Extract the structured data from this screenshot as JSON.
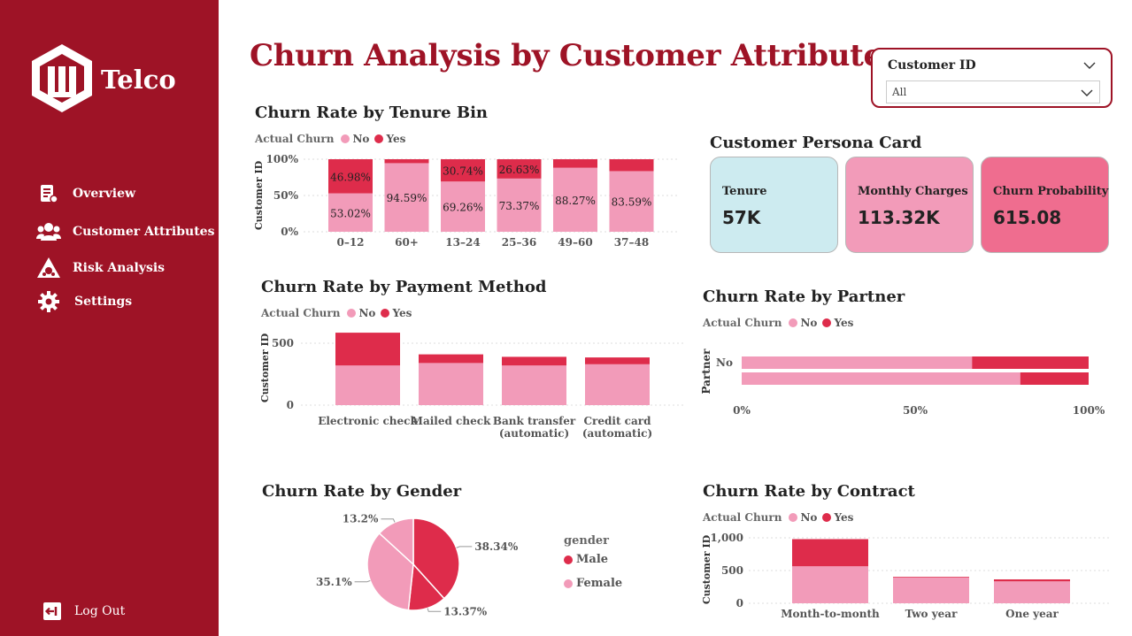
{
  "brand": {
    "name": "Telco"
  },
  "nav": {
    "items": [
      {
        "label": "Overview",
        "icon": "report-icon"
      },
      {
        "label": "Customer Attributes",
        "icon": "users-icon"
      },
      {
        "label": "Risk Analysis",
        "icon": "warning-icon"
      },
      {
        "label": "Settings",
        "icon": "gear-icon"
      }
    ],
    "logout": {
      "label": "Log Out",
      "icon": "logout-icon"
    }
  },
  "header": {
    "title": "Churn Analysis by Customer Attributes"
  },
  "slicer": {
    "title": "Customer ID",
    "value": "All"
  },
  "colors": {
    "no": "#f29bb9",
    "yes": "#de2c4b",
    "brand": "#9e1326",
    "card_tenure": "#cdebf0",
    "card_monthly": "#f29bb9",
    "card_churn": "#ef6d8f"
  },
  "legend": {
    "title": "Actual Churn",
    "no": "No",
    "yes": "Yes"
  },
  "persona": {
    "title": "Customer Persona Card",
    "cards": [
      {
        "label": "Tenure",
        "value": "57K"
      },
      {
        "label": "Monthly Charges",
        "value": "113.32K"
      },
      {
        "label": "Churn Probability",
        "value": "615.08"
      }
    ]
  },
  "chart_data": [
    {
      "id": "tenure",
      "type": "bar",
      "stacked": "100%",
      "title": "Churn Rate by Tenure Bin",
      "ylabel": "Customer ID",
      "yticks": [
        "100%",
        "50%",
        "0%"
      ],
      "categories": [
        "0–12",
        "60+",
        "13–24",
        "25–36",
        "49–60",
        "37–48"
      ],
      "series": [
        {
          "name": "No",
          "values": [
            53.02,
            94.59,
            69.26,
            73.37,
            88.27,
            83.59
          ],
          "labels": [
            "53.02%",
            "94.59%",
            "69.26%",
            "73.37%",
            "88.27%",
            "83.59%"
          ]
        },
        {
          "name": "Yes",
          "values": [
            46.98,
            5.41,
            30.74,
            26.63,
            11.73,
            16.41
          ],
          "labels": [
            "46.98%",
            "",
            "30.74%",
            "26.63%",
            "",
            ""
          ]
        }
      ]
    },
    {
      "id": "payment",
      "type": "bar",
      "stacked": "count",
      "title": "Churn Rate by Payment Method",
      "ylabel": "Customer ID",
      "ylim": [
        0,
        600
      ],
      "yticks": [
        "500",
        "0"
      ],
      "categories": [
        "Electronic check",
        "Mailed check",
        "Bank transfer (automatic)",
        "Credit card (automatic)"
      ],
      "category_lines": [
        [
          "Electronic check"
        ],
        [
          "Mailed check"
        ],
        [
          "Bank transfer",
          "(automatic)"
        ],
        [
          "Credit card",
          "(automatic)"
        ]
      ],
      "series": [
        {
          "name": "No",
          "values": [
            320,
            340,
            320,
            330
          ]
        },
        {
          "name": "Yes",
          "values": [
            265,
            70,
            70,
            55
          ]
        }
      ]
    },
    {
      "id": "partner",
      "type": "bar",
      "orientation": "horizontal",
      "stacked": "100%",
      "title": "Churn Rate by Partner",
      "ylabel": "Partner",
      "categories": [
        "No",
        ""
      ],
      "xticks": [
        "0%",
        "50%",
        "100%"
      ],
      "series": [
        {
          "name": "No",
          "values": [
            66.4,
            80.3
          ]
        },
        {
          "name": "Yes",
          "values": [
            33.6,
            19.7
          ]
        }
      ]
    },
    {
      "id": "gender",
      "type": "pie",
      "title": "Churn Rate by Gender",
      "legend_title": "gender",
      "slices": [
        {
          "name": "Male",
          "value": 38.34,
          "label": "38.34%",
          "series": "yes"
        },
        {
          "name": "Female",
          "value": 13.37,
          "label": "13.37%",
          "series": "yes"
        },
        {
          "name": "Female",
          "value": 35.1,
          "label": "35.1%",
          "series": "no"
        },
        {
          "name": "Female",
          "value": 13.2,
          "label": "13.2%",
          "series": "no"
        }
      ],
      "legend": [
        {
          "name": "Male",
          "color": "#de2c4b"
        },
        {
          "name": "Female",
          "color": "#f29bb9"
        }
      ]
    },
    {
      "id": "contract",
      "type": "bar",
      "stacked": "count",
      "title": "Churn Rate by Contract",
      "ylabel": "Customer ID",
      "ylim": [
        0,
        1000
      ],
      "yticks": [
        "1,000",
        "500",
        "0"
      ],
      "categories": [
        "Month-to-month",
        "Two year",
        "One year"
      ],
      "series": [
        {
          "name": "No",
          "values": [
            565,
            395,
            335
          ]
        },
        {
          "name": "Yes",
          "values": [
            415,
            10,
            30
          ]
        }
      ]
    }
  ]
}
